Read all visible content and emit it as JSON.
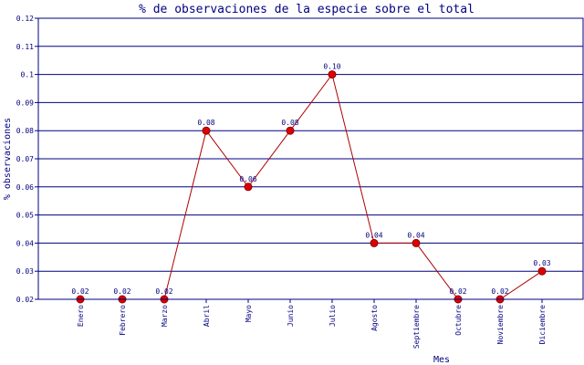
{
  "chart_data": {
    "type": "line",
    "title": "% de observaciones de la especie sobre el total",
    "xlabel": "Mes",
    "ylabel": "% observaciones",
    "categories": [
      "Enero",
      "Febrero",
      "Marzo",
      "Abril",
      "Mayo",
      "Junio",
      "Julio",
      "Agosto",
      "Septiembre",
      "Octubre",
      "Noviembre",
      "Diciembre"
    ],
    "values": [
      0.02,
      0.02,
      0.02,
      0.08,
      0.06,
      0.08,
      0.1,
      0.04,
      0.04,
      0.02,
      0.02,
      0.03
    ],
    "data_labels": [
      "0.02",
      "0.02",
      "0.02",
      "0.08",
      "0.06",
      "0.08",
      "0.10",
      "0.04",
      "0.04",
      "0.02",
      "0.02",
      "0.03"
    ],
    "ylim": [
      0.02,
      0.12
    ],
    "yticks": [
      0.02,
      0.03,
      0.04,
      0.05,
      0.06,
      0.07,
      0.08,
      0.09,
      0.1,
      0.11,
      0.12
    ],
    "ytick_labels": [
      "0.02",
      "0.03",
      "0.04",
      "0.05",
      "0.06",
      "0.07",
      "0.08",
      "0.09",
      "0.1",
      "0.11",
      "0.12"
    ],
    "grid": true,
    "legend": "none",
    "colors": {
      "line": "#b00000",
      "marker": "#dd0000",
      "grid": "#000080",
      "text": "#000080",
      "background": "#ffffff"
    }
  }
}
